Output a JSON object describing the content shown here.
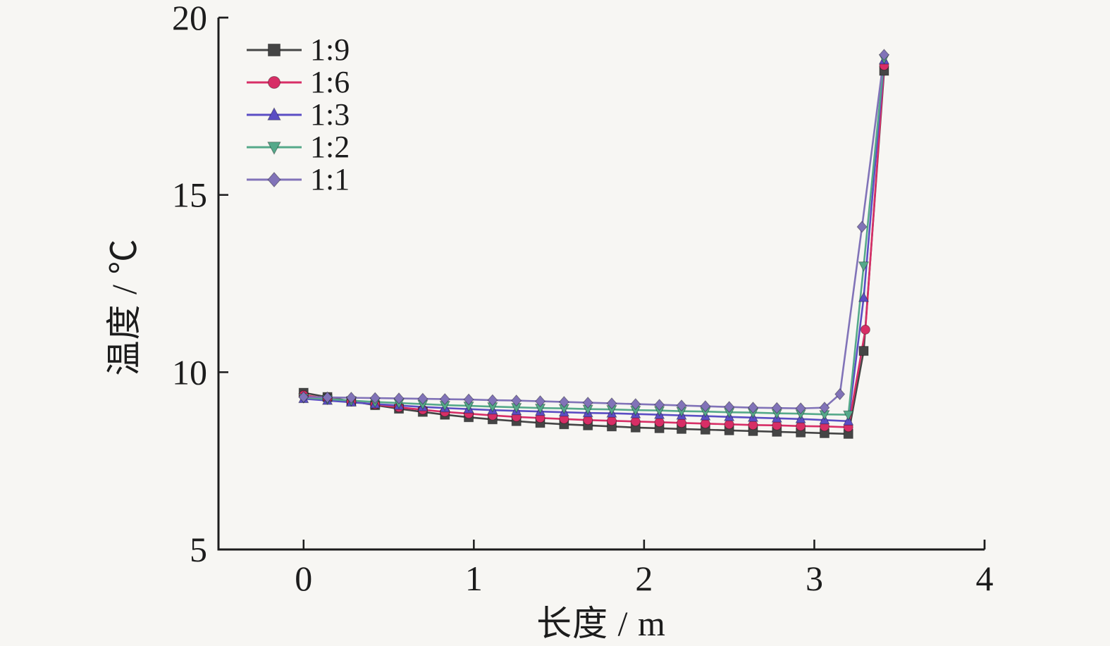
{
  "chart_data": {
    "type": "line",
    "title": "",
    "xlabel": "长度 / m",
    "ylabel": "温度 / ℃",
    "xlim": [
      -0.5,
      4.0
    ],
    "ylim": [
      5,
      20
    ],
    "x_ticks": [
      0,
      1,
      2,
      3,
      4
    ],
    "y_ticks": [
      5,
      10,
      15,
      20
    ],
    "grid": false,
    "legend_position": "top-left-inside",
    "axis_color": "#1c1c1c",
    "background_color": "#f7f6f3",
    "series": [
      {
        "name": "1:9",
        "color": "#454545",
        "marker": "square",
        "x": [
          0,
          0.14,
          0.28,
          0.42,
          0.56,
          0.7,
          0.83,
          0.97,
          1.11,
          1.25,
          1.39,
          1.53,
          1.67,
          1.81,
          1.95,
          2.09,
          2.22,
          2.36,
          2.5,
          2.64,
          2.78,
          2.92,
          3.06,
          3.2,
          3.29,
          3.41
        ],
        "y": [
          9.42,
          9.3,
          9.18,
          9.07,
          8.97,
          8.88,
          8.8,
          8.73,
          8.67,
          8.62,
          8.57,
          8.53,
          8.5,
          8.47,
          8.44,
          8.42,
          8.4,
          8.38,
          8.36,
          8.34,
          8.32,
          8.3,
          8.28,
          8.26,
          10.6,
          18.5
        ]
      },
      {
        "name": "1:6",
        "color": "#d72e66",
        "marker": "circle",
        "x": [
          0,
          0.14,
          0.28,
          0.42,
          0.56,
          0.7,
          0.83,
          0.97,
          1.11,
          1.25,
          1.39,
          1.53,
          1.67,
          1.81,
          1.95,
          2.09,
          2.22,
          2.36,
          2.5,
          2.64,
          2.78,
          2.92,
          3.06,
          3.2,
          3.3,
          3.41
        ],
        "y": [
          9.35,
          9.26,
          9.17,
          9.09,
          9.01,
          8.94,
          8.88,
          8.83,
          8.78,
          8.74,
          8.71,
          8.68,
          8.65,
          8.63,
          8.61,
          8.59,
          8.57,
          8.55,
          8.53,
          8.51,
          8.5,
          8.48,
          8.47,
          8.45,
          11.2,
          18.65
        ]
      },
      {
        "name": "1:3",
        "color": "#5b4ec4",
        "marker": "triangle-up",
        "x": [
          0,
          0.14,
          0.28,
          0.42,
          0.56,
          0.7,
          0.83,
          0.97,
          1.11,
          1.25,
          1.39,
          1.53,
          1.67,
          1.81,
          1.95,
          2.09,
          2.22,
          2.36,
          2.5,
          2.64,
          2.78,
          2.92,
          3.06,
          3.2,
          3.29,
          3.41
        ],
        "y": [
          9.25,
          9.2,
          9.15,
          9.1,
          9.06,
          9.02,
          8.99,
          8.96,
          8.93,
          8.91,
          8.89,
          8.87,
          8.85,
          8.84,
          8.82,
          8.8,
          8.78,
          8.76,
          8.74,
          8.72,
          8.7,
          8.68,
          8.65,
          8.62,
          12.1,
          18.8
        ]
      },
      {
        "name": "1:2",
        "color": "#55a98a",
        "marker": "triangle-down",
        "x": [
          0,
          0.14,
          0.28,
          0.42,
          0.56,
          0.7,
          0.83,
          0.97,
          1.11,
          1.25,
          1.39,
          1.53,
          1.67,
          1.81,
          1.95,
          2.09,
          2.22,
          2.36,
          2.5,
          2.64,
          2.78,
          2.92,
          3.06,
          3.2,
          3.29,
          3.41
        ],
        "y": [
          9.28,
          9.24,
          9.2,
          9.16,
          9.13,
          9.1,
          9.07,
          9.05,
          9.03,
          9.01,
          8.99,
          8.98,
          8.96,
          8.95,
          8.93,
          8.92,
          8.9,
          8.89,
          8.87,
          8.86,
          8.84,
          8.83,
          8.81,
          8.8,
          13.0,
          18.85
        ]
      },
      {
        "name": "1:1",
        "color": "#8173b8",
        "marker": "diamond",
        "x": [
          0,
          0.14,
          0.28,
          0.42,
          0.56,
          0.7,
          0.83,
          0.97,
          1.11,
          1.25,
          1.39,
          1.53,
          1.67,
          1.81,
          1.95,
          2.09,
          2.22,
          2.36,
          2.5,
          2.64,
          2.78,
          2.92,
          3.06,
          3.15,
          3.28,
          3.41
        ],
        "y": [
          9.3,
          9.29,
          9.28,
          9.27,
          9.26,
          9.25,
          9.24,
          9.23,
          9.21,
          9.2,
          9.18,
          9.16,
          9.14,
          9.12,
          9.1,
          9.08,
          9.06,
          9.04,
          9.02,
          9.0,
          8.99,
          8.98,
          9.0,
          9.38,
          14.1,
          18.95
        ]
      }
    ]
  }
}
